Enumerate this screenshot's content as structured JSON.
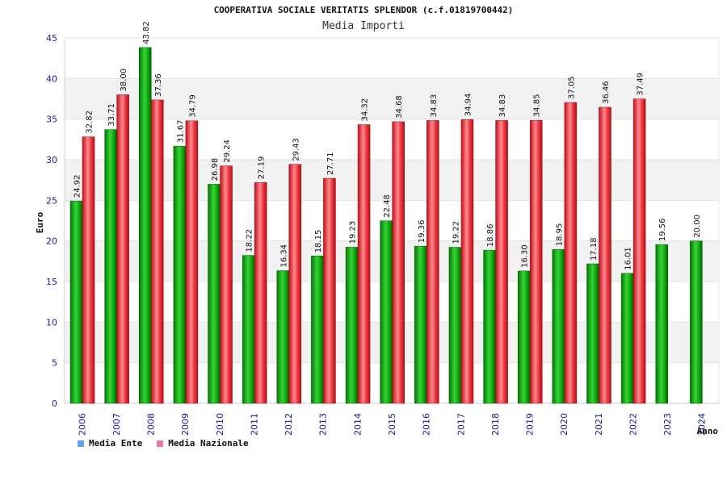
{
  "chart_data": {
    "type": "bar",
    "title": "COOPERATIVA SOCIALE VERITATIS SPLENDOR (c.f.01819700442)",
    "subtitle": "Media Importi",
    "xlabel": "Anno",
    "ylabel": "Euro",
    "ylim": [
      0,
      45
    ],
    "yticks": [
      0,
      5,
      10,
      15,
      20,
      25,
      30,
      35,
      40,
      45
    ],
    "grid": true,
    "legend_position": "bottom-left",
    "categories": [
      "2006",
      "2007",
      "2008",
      "2009",
      "2010",
      "2011",
      "2012",
      "2013",
      "2014",
      "2015",
      "2016",
      "2017",
      "2018",
      "2019",
      "2020",
      "2021",
      "2022",
      "2023",
      "2024"
    ],
    "series": [
      {
        "name": "Media Ente",
        "color": "#00b000",
        "legend_color": "#5ea4e8",
        "values": [
          24.92,
          33.71,
          43.82,
          31.67,
          26.98,
          18.22,
          16.34,
          18.15,
          19.23,
          22.48,
          19.36,
          19.22,
          18.86,
          16.3,
          18.95,
          17.18,
          16.01,
          19.56,
          20.0
        ],
        "labels": [
          "24.92",
          "33.71",
          "43.82",
          "31.67",
          "26.98",
          "18.22",
          "16.34",
          "18.15",
          "19.23",
          "22.48",
          "19.36",
          "19.22",
          "18.86",
          "16.30",
          "18.95",
          "17.18",
          "16.01",
          "19.56",
          "20.00"
        ]
      },
      {
        "name": "Media Nazionale",
        "color": "#e8202a",
        "legend_color": "#e07aa8",
        "values": [
          32.82,
          38.0,
          37.36,
          34.79,
          29.24,
          27.19,
          29.43,
          27.71,
          34.32,
          34.68,
          34.83,
          34.94,
          34.83,
          34.85,
          37.05,
          36.46,
          37.49,
          null,
          null
        ],
        "labels": [
          "32.82",
          "38.00",
          "37.36",
          "34.79",
          "29.24",
          "27.19",
          "29.43",
          "27.71",
          "34.32",
          "34.68",
          "34.83",
          "34.94",
          "34.83",
          "34.85",
          "37.05",
          "36.46",
          "37.49",
          null,
          null
        ]
      }
    ]
  }
}
